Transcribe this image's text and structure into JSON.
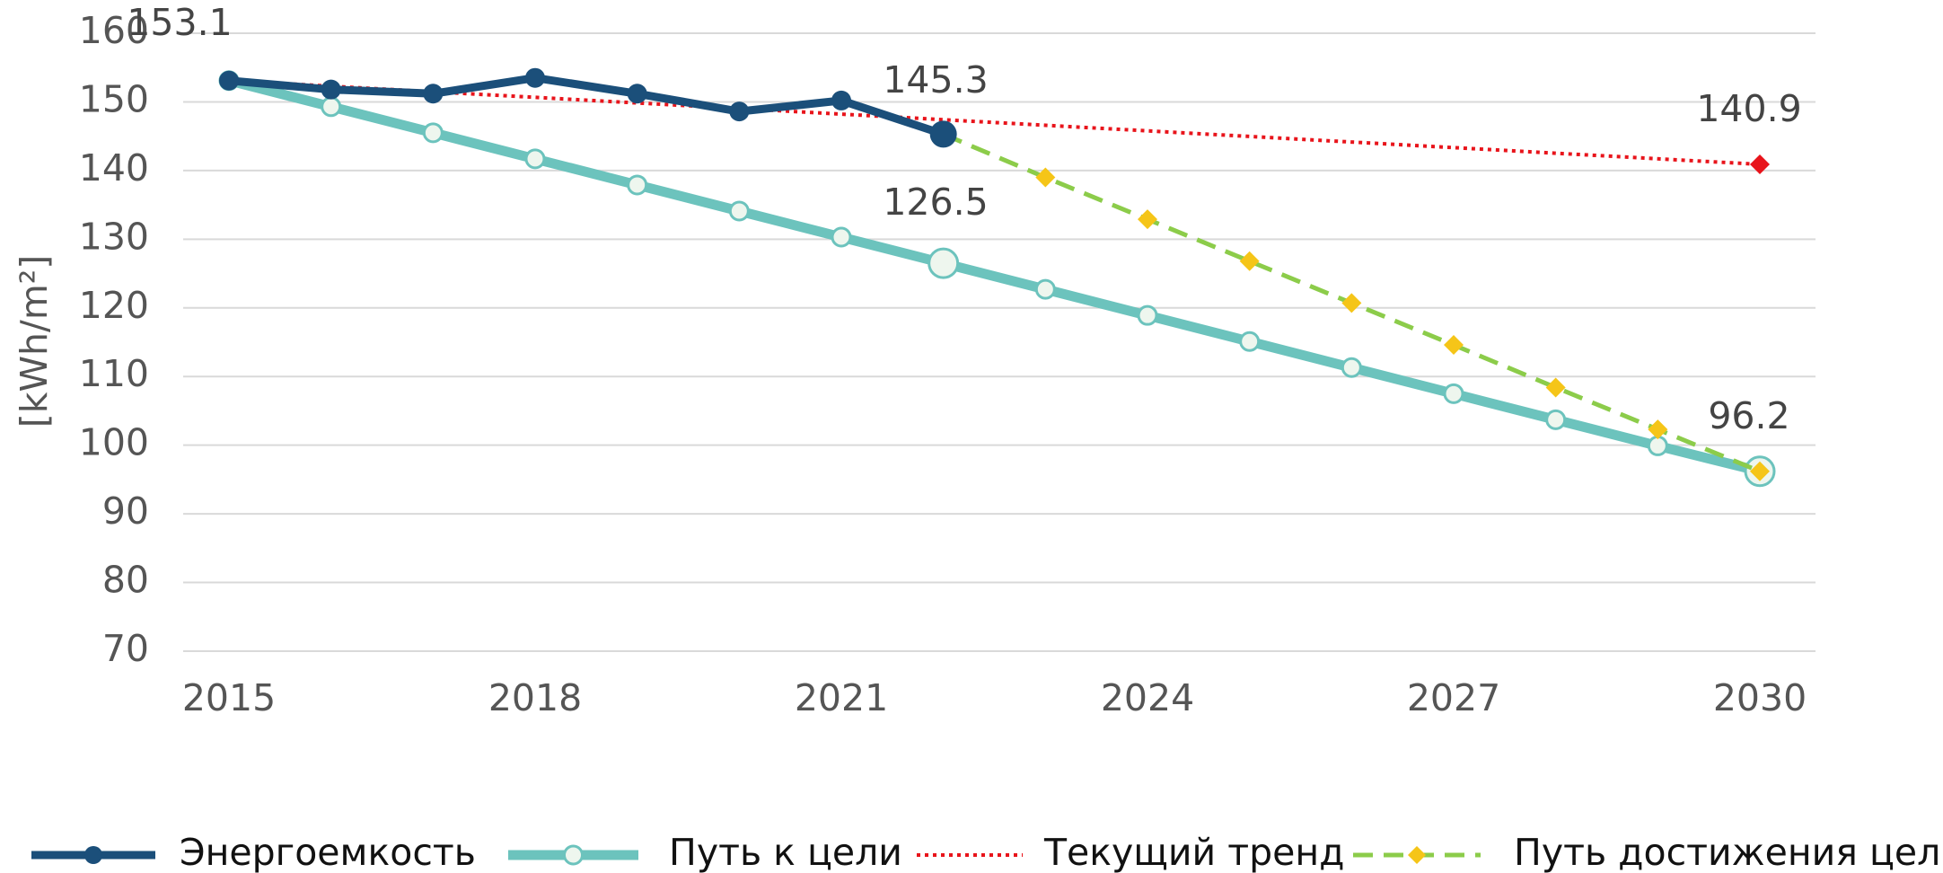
{
  "chart_data": {
    "type": "line",
    "y_label": "[kWh/m²]",
    "xlim": [
      2015,
      2030
    ],
    "xticks": [
      2015,
      2018,
      2021,
      2024,
      2027,
      2030
    ],
    "ylim": [
      70,
      160
    ],
    "yticks": [
      70,
      80,
      90,
      100,
      110,
      120,
      130,
      140,
      150,
      160
    ],
    "grid": true,
    "legend": "bottom",
    "annotations": [
      "153.1",
      "145.3",
      "126.5",
      "140.9",
      "96.2"
    ],
    "series": [
      {
        "name": "Энергоемкость",
        "color": "#1b4f7a",
        "marker": "circle",
        "dash": "solid",
        "x": [
          2015,
          2016,
          2017,
          2018,
          2019,
          2020,
          2021,
          2022
        ],
        "values": [
          153.1,
          151.8,
          151.2,
          153.5,
          151.2,
          148.6,
          150.2,
          145.3
        ]
      },
      {
        "name": "Путь к цели",
        "color": "#6cc3bd",
        "marker": "open-circle",
        "dash": "solid",
        "x": [
          2015,
          2016,
          2017,
          2018,
          2019,
          2020,
          2021,
          2022,
          2023,
          2024,
          2025,
          2026,
          2027,
          2028,
          2029,
          2030
        ],
        "values": [
          153.1,
          149.3,
          145.5,
          141.7,
          137.9,
          134.1,
          130.3,
          126.5,
          122.7,
          118.9,
          115.1,
          111.3,
          107.5,
          103.7,
          99.9,
          96.2
        ]
      },
      {
        "name": "Текущий тренд",
        "color": "#e8141b",
        "marker": "diamond-end",
        "dash": "dotted",
        "x": [
          2015,
          2030
        ],
        "values": [
          153.1,
          140.9
        ]
      },
      {
        "name": "Путь достижения цели",
        "color": "#8ccc4a",
        "marker": "diamond",
        "marker_color": "#f5c518",
        "dash": "dashed",
        "x": [
          2022,
          2023,
          2024,
          2025,
          2026,
          2027,
          2028,
          2029,
          2030
        ],
        "values": [
          145.3,
          139.0,
          132.9,
          126.8,
          120.7,
          114.6,
          108.4,
          102.3,
          96.2
        ]
      }
    ]
  }
}
